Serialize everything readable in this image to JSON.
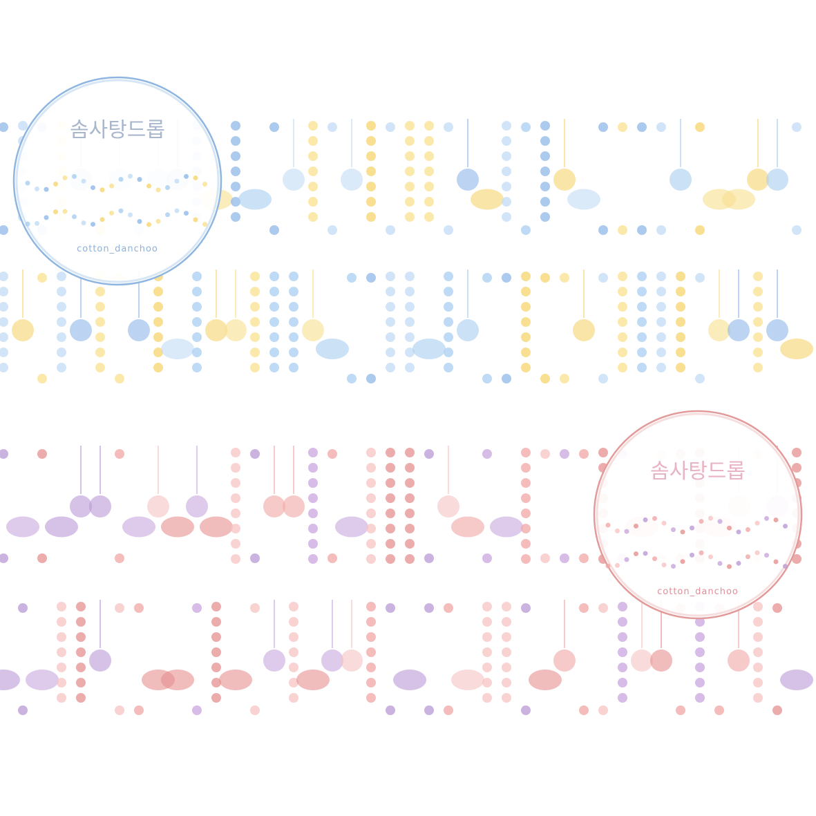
{
  "tapes": [
    {
      "title": "솜사탕드롭",
      "brand": "cotton_danchoo"
    },
    {
      "title": "솜사탕드롭",
      "brand": "cotton_danchoo"
    }
  ]
}
